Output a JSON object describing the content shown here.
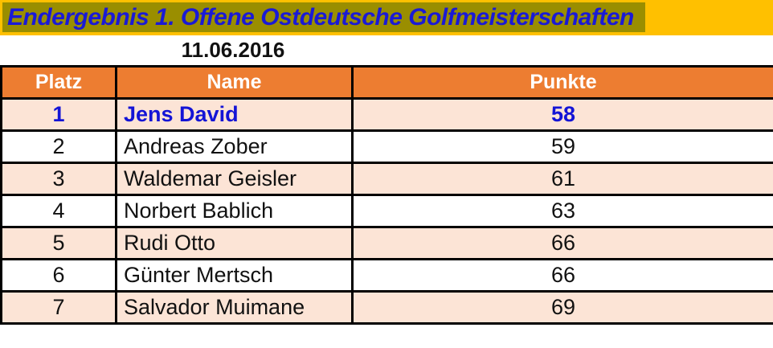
{
  "header": {
    "title": "Endergebnis 1. Offene Ostdeutsche Golfmeisterschaften",
    "date": "11.06.2016"
  },
  "colors": {
    "gold": "#FFC000",
    "olive": "#9A8E00",
    "title_blue": "#1A1AD6",
    "header_orange": "#ED7D31",
    "row_pink": "#FCE4D6",
    "winner_blue": "#1414D6",
    "border_black": "#000000"
  },
  "table": {
    "columns": [
      "Platz",
      "Name",
      "Punkte"
    ],
    "rows": [
      {
        "platz": "1",
        "name": "Jens David",
        "punkte": "58"
      },
      {
        "platz": "2",
        "name": "Andreas Zober",
        "punkte": "59"
      },
      {
        "platz": "3",
        "name": "Waldemar Geisler",
        "punkte": "61"
      },
      {
        "platz": "4",
        "name": "Norbert Bablich",
        "punkte": "63"
      },
      {
        "platz": "5",
        "name": "Rudi Otto",
        "punkte": "66"
      },
      {
        "platz": "6",
        "name": "Günter Mertsch",
        "punkte": "66"
      },
      {
        "platz": "7",
        "name": "Salvador Muimane",
        "punkte": "69"
      }
    ]
  }
}
